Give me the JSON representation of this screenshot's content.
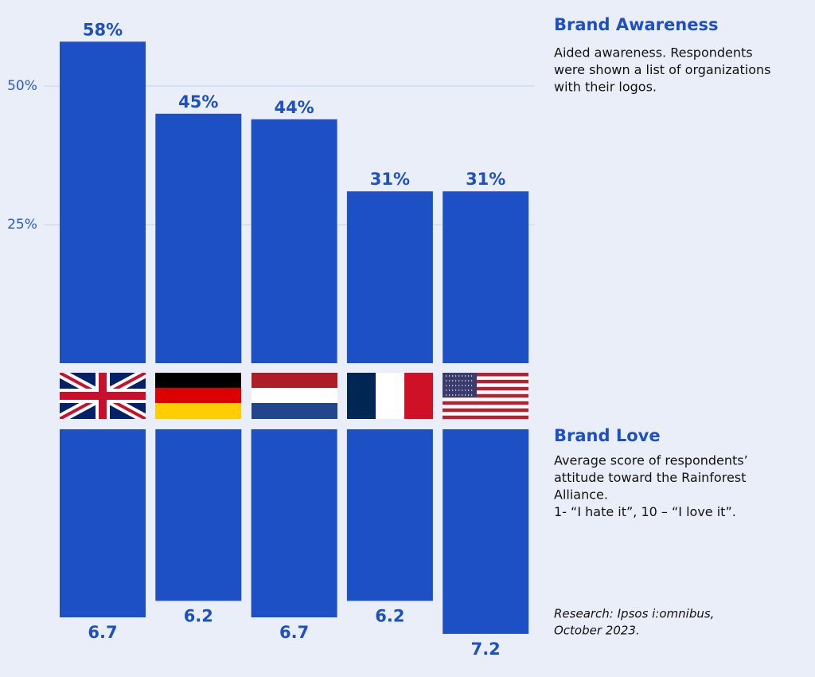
{
  "chart_data": [
    {
      "type": "bar",
      "title": "Brand Awareness",
      "subtitle": [
        "Aided awareness. Respondents",
        "were shown a list of organizations",
        "with their logos."
      ],
      "values": [
        58,
        45,
        44,
        31,
        31
      ],
      "value_labels": [
        "58%",
        "45%",
        "44%",
        "31%",
        "31%"
      ],
      "color": "#1c50c4",
      "ylim": [
        0,
        65
      ],
      "yticks": [
        {
          "value": 25,
          "label": "25%"
        },
        {
          "value": 50,
          "label": "50%"
        }
      ],
      "grid": true
    },
    {
      "type": "bar",
      "title": "Brand Love",
      "subtitle": [
        "Average score of respondents’",
        "attitude toward the Rainforest",
        "Alliance.",
        "1- “I hate it”, 10 – “I love it”."
      ],
      "values": [
        6.7,
        6.2,
        6.7,
        6.2,
        7.2
      ],
      "color": "#1c50c4",
      "ylim": [
        1,
        8
      ],
      "y_inverted": true,
      "annotation": [
        "Research: Ipsos i:omnibus,",
        "October 2023."
      ]
    }
  ]
}
